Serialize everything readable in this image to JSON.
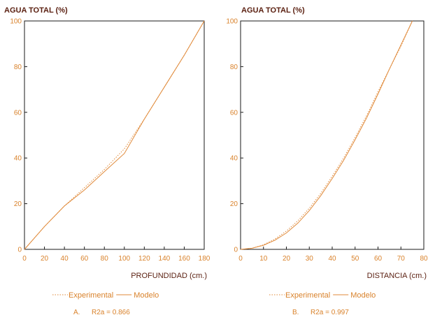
{
  "colors": {
    "series": "#e08a3a",
    "text_dark": "#5a1f10",
    "ticks": "#d9822b",
    "axes": "#1a1a1a"
  },
  "chart_data": [
    {
      "type": "line",
      "ylabel": "AGUA TOTAL (%)",
      "xlabel": "PROFUNDIDAD (cm.)",
      "xlim": [
        0,
        180
      ],
      "ylim": [
        0,
        100
      ],
      "xticks": [
        0,
        20,
        40,
        60,
        80,
        100,
        120,
        140,
        160,
        180
      ],
      "yticks": [
        0,
        20,
        40,
        60,
        80,
        100
      ],
      "legend": {
        "experimental_label": "Experimental",
        "model_label": "Modelo"
      },
      "caption": {
        "letter": "A.",
        "stat": "R2a = 0.866"
      },
      "series": [
        {
          "name": "Experimental",
          "style": "dotted",
          "x": [
            0,
            20,
            40,
            60,
            80,
            100,
            120,
            140,
            160,
            180
          ],
          "y": [
            0,
            10,
            19,
            27,
            35,
            44,
            57,
            71,
            85,
            100
          ]
        },
        {
          "name": "Modelo",
          "style": "solid",
          "x": [
            0,
            20,
            40,
            60,
            80,
            100,
            120,
            140,
            160,
            180
          ],
          "y": [
            0,
            10,
            19,
            26,
            34,
            42,
            57,
            71,
            85,
            100
          ]
        }
      ]
    },
    {
      "type": "line",
      "ylabel": "AGUA TOTAL (%)",
      "xlabel": "DISTANCIA (cm.)",
      "xlim": [
        0,
        80
      ],
      "ylim": [
        0,
        100
      ],
      "xticks": [
        0,
        10,
        20,
        30,
        40,
        50,
        60,
        70,
        80
      ],
      "yticks": [
        0,
        20,
        40,
        60,
        80,
        100
      ],
      "legend": {
        "experimental_label": "Experimental",
        "model_label": "Modelo"
      },
      "caption": {
        "letter": "B.",
        "stat": "R2a = 0.997"
      },
      "series": [
        {
          "name": "Experimental",
          "style": "dotted",
          "x": [
            0,
            5,
            10,
            15,
            20,
            25,
            30,
            35,
            40,
            45,
            50,
            55,
            60,
            65,
            70,
            75
          ],
          "y": [
            0,
            0.5,
            2,
            4.5,
            8,
            12.5,
            18,
            24.5,
            32,
            40,
            49,
            58.5,
            69,
            79,
            89,
            100
          ]
        },
        {
          "name": "Modelo",
          "style": "solid",
          "x": [
            0,
            5,
            10,
            15,
            20,
            25,
            30,
            35,
            40,
            45,
            50,
            55,
            60,
            65,
            70,
            75
          ],
          "y": [
            0,
            0.5,
            1.8,
            4,
            7.2,
            11.5,
            17,
            23.5,
            31,
            39,
            48,
            57.5,
            68,
            79,
            89.5,
            100
          ]
        }
      ]
    }
  ]
}
